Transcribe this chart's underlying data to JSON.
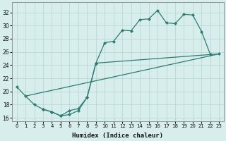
{
  "xlabel": "Humidex (Indice chaleur)",
  "xlim": [
    -0.5,
    23.5
  ],
  "ylim": [
    15.5,
    33.5
  ],
  "xticks": [
    0,
    1,
    2,
    3,
    4,
    5,
    6,
    7,
    8,
    9,
    10,
    11,
    12,
    13,
    14,
    15,
    16,
    17,
    18,
    19,
    20,
    21,
    22,
    23
  ],
  "yticks": [
    16,
    18,
    20,
    22,
    24,
    26,
    28,
    30,
    32
  ],
  "color": "#2d7b72",
  "bg_color": "#d8eeed",
  "grid_color": "#b8d8d4",
  "line1_x": [
    0,
    1,
    2,
    3,
    4,
    5,
    6,
    7,
    8,
    9,
    10,
    11,
    12,
    13,
    14,
    15,
    16,
    17,
    18,
    19,
    20,
    21,
    22
  ],
  "line1_y": [
    20.7,
    19.3,
    18.0,
    17.3,
    16.9,
    16.3,
    17.1,
    17.4,
    19.1,
    24.3,
    27.4,
    27.6,
    29.3,
    29.2,
    30.9,
    31.0,
    32.3,
    30.4,
    30.3,
    31.7,
    31.6,
    29.1,
    25.6
  ],
  "line2_x": [
    1,
    23
  ],
  "line2_y": [
    19.3,
    25.7
  ],
  "line3_x": [
    3,
    4,
    5,
    6,
    7,
    8,
    9,
    22,
    23
  ],
  "line3_y": [
    17.3,
    16.9,
    16.3,
    16.5,
    17.1,
    19.1,
    24.3,
    25.6,
    25.7
  ]
}
